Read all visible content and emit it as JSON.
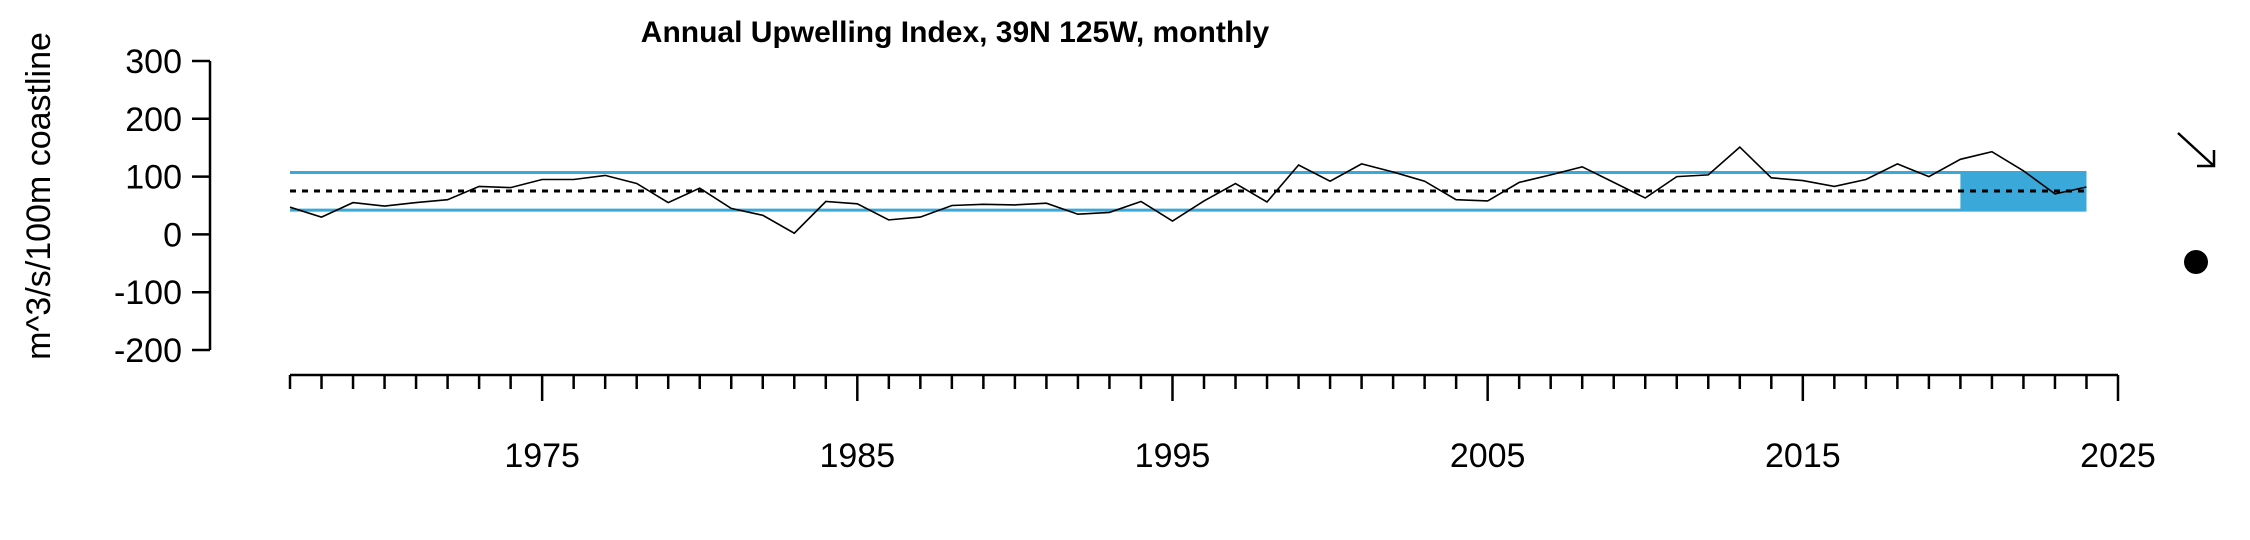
{
  "chart_data": {
    "type": "line",
    "title": "Annual Upwelling Index, 39N 125W, monthly",
    "ylabel": "m^3/s/100m coastline",
    "xlabel": "",
    "xlim": [
      1967,
      2025
    ],
    "ylim": [
      -200,
      300
    ],
    "x_ticks": [
      1975,
      1985,
      1995,
      2005,
      2015,
      2025
    ],
    "y_ticks": [
      300,
      200,
      100,
      0,
      -100,
      -200
    ],
    "x_minor_step": 1,
    "mean": 75,
    "sd_upper": 107,
    "sd_lower": 42,
    "highlight_range": [
      2020,
      2024
    ],
    "colors": {
      "band": "#3aa8d8",
      "line": "#000000",
      "mean": "#000000"
    },
    "trend_indicator": "arrow-down-right",
    "recent_mean_indicator": "dot",
    "series": [
      {
        "x": [
          1967,
          1968,
          1969,
          1970,
          1971,
          1972,
          1973,
          1974,
          1975,
          1976,
          1977,
          1978,
          1979,
          1980,
          1981,
          1982,
          1983,
          1984,
          1985,
          1986,
          1987,
          1988,
          1989,
          1990,
          1991,
          1992,
          1993,
          1994,
          1995,
          1996,
          1997,
          1998,
          1999,
          2000,
          2001,
          2002,
          2003,
          2004,
          2005,
          2006,
          2007,
          2008,
          2009,
          2010,
          2011,
          2012,
          2013,
          2014,
          2015,
          2016,
          2017,
          2018,
          2019,
          2020,
          2021,
          2022,
          2023,
          2024
        ],
        "values": [
          47,
          30,
          55,
          49,
          55,
          60,
          83,
          81,
          95,
          95,
          102,
          88,
          55,
          80,
          45,
          33,
          2,
          57,
          53,
          25,
          30,
          50,
          52,
          51,
          54,
          35,
          38,
          57,
          23,
          58,
          88,
          56,
          120,
          92,
          122,
          108,
          92,
          60,
          58,
          90,
          103,
          117,
          90,
          63,
          100,
          103,
          151,
          98,
          93,
          83,
          95,
          122,
          100,
          130,
          143,
          110,
          70,
          82
        ]
      }
    ]
  }
}
